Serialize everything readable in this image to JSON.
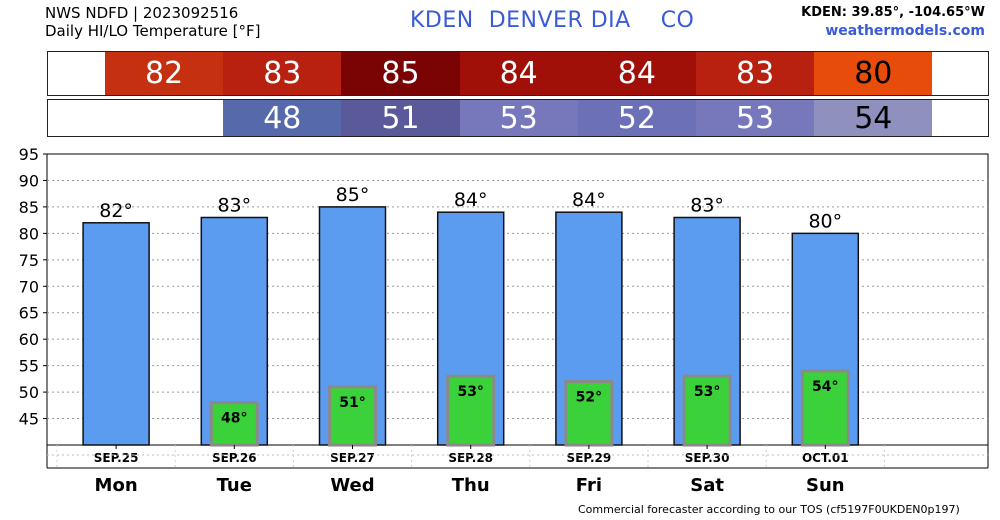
{
  "header": {
    "line1": "NWS NDFD | 2023092516",
    "line2": "Daily HI/LO Temperature [°F]",
    "title": "KDEN  DENVER DIA    CO",
    "location": "KDEN: 39.85°, -104.65°W",
    "site": "weathermodels.com"
  },
  "hi_strip": [
    {
      "label": "82",
      "color": "#c43010"
    },
    {
      "label": "83",
      "color": "#b82010"
    },
    {
      "label": "85",
      "color": "#7a0404"
    },
    {
      "label": "84",
      "color": "#a01008"
    },
    {
      "label": "84",
      "color": "#a01008"
    },
    {
      "label": "83",
      "color": "#b82010"
    },
    {
      "label": "80",
      "color": "#e84c0a",
      "text_color": "#000000"
    }
  ],
  "lo_strip": [
    {
      "label": "48",
      "color": "#5569ab"
    },
    {
      "label": "51",
      "color": "#5a5a9a"
    },
    {
      "label": "53",
      "color": "#7777bb"
    },
    {
      "label": "52",
      "color": "#6c70b6"
    },
    {
      "label": "53",
      "color": "#7777bb"
    },
    {
      "label": "54",
      "color": "#9090bf",
      "text_color": "#000000"
    }
  ],
  "chart_data": {
    "type": "bar",
    "categories": [
      "SEP.25",
      "SEP.26",
      "SEP.27",
      "SEP.28",
      "SEP.29",
      "SEP.30",
      "OCT.01"
    ],
    "days": [
      "Mon",
      "Tue",
      "Wed",
      "Thu",
      "Fri",
      "Sat",
      "Sun"
    ],
    "series": [
      {
        "values": [
          82,
          83,
          85,
          84,
          84,
          83,
          80
        ],
        "labels": [
          "82°",
          "83°",
          "85°",
          "84°",
          "84°",
          "83°",
          "80°"
        ],
        "color": "#5b9cf0"
      },
      {
        "values": [
          null,
          48,
          51,
          53,
          52,
          53,
          54
        ],
        "labels": [
          "",
          "48°",
          "51°",
          "53°",
          "52°",
          "53°",
          "54°"
        ],
        "color": "#3ad13a"
      }
    ],
    "ylim": [
      40,
      95
    ],
    "yticks": [
      45,
      50,
      55,
      60,
      65,
      70,
      75,
      80,
      85,
      90,
      95
    ],
    "grid": true
  },
  "footer": "Commercial forecaster according to our TOS (cf5197F0UKDEN0p197)"
}
